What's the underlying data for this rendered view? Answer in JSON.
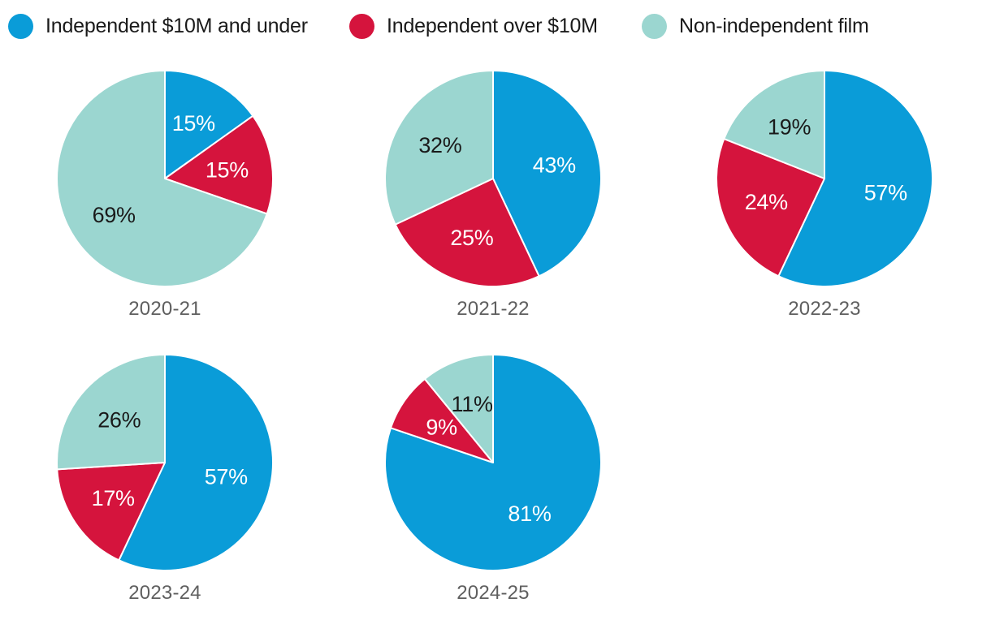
{
  "colors": {
    "blue": "#0a9cd8",
    "red": "#d5143d",
    "teal": "#9bd6d0",
    "value_label_light": "#ffffff",
    "value_label_dark": "#1a1a1a",
    "year_label": "#5f5f5f",
    "legend_text": "#1a1a1a",
    "background": "#ffffff",
    "slice_separator": "#ffffff"
  },
  "legend": {
    "position": "top",
    "items": [
      {
        "label": "Independent $10M and under",
        "color": "#0a9cd8"
      },
      {
        "label": "Independent over $10M",
        "color": "#d5143d"
      },
      {
        "label": "Non-independent film",
        "color": "#9bd6d0"
      }
    ]
  },
  "chart_data": {
    "type": "pie",
    "title": "",
    "series_labels": [
      "Independent $10M and under",
      "Independent over $10M",
      "Non-independent film"
    ],
    "series_keys": [
      "independent-10m-and-under",
      "independent-over-10m",
      "non-independent-film"
    ],
    "series_colors": [
      "#0a9cd8",
      "#d5143d",
      "#9bd6d0"
    ],
    "value_label_colors": [
      "#ffffff",
      "#ffffff",
      "#1a1a1a"
    ],
    "value_suffix": "%",
    "start_angle_deg": 0,
    "direction": "clockwise",
    "legend_position": "top",
    "pies": [
      {
        "title": "2020-21",
        "values": [
          15,
          15,
          69
        ]
      },
      {
        "title": "2021-22",
        "values": [
          43,
          25,
          32
        ]
      },
      {
        "title": "2022-23",
        "values": [
          57,
          24,
          19
        ]
      },
      {
        "title": "2023-24",
        "values": [
          57,
          17,
          26
        ]
      },
      {
        "title": "2024-25",
        "values": [
          81,
          9,
          11
        ]
      }
    ]
  }
}
